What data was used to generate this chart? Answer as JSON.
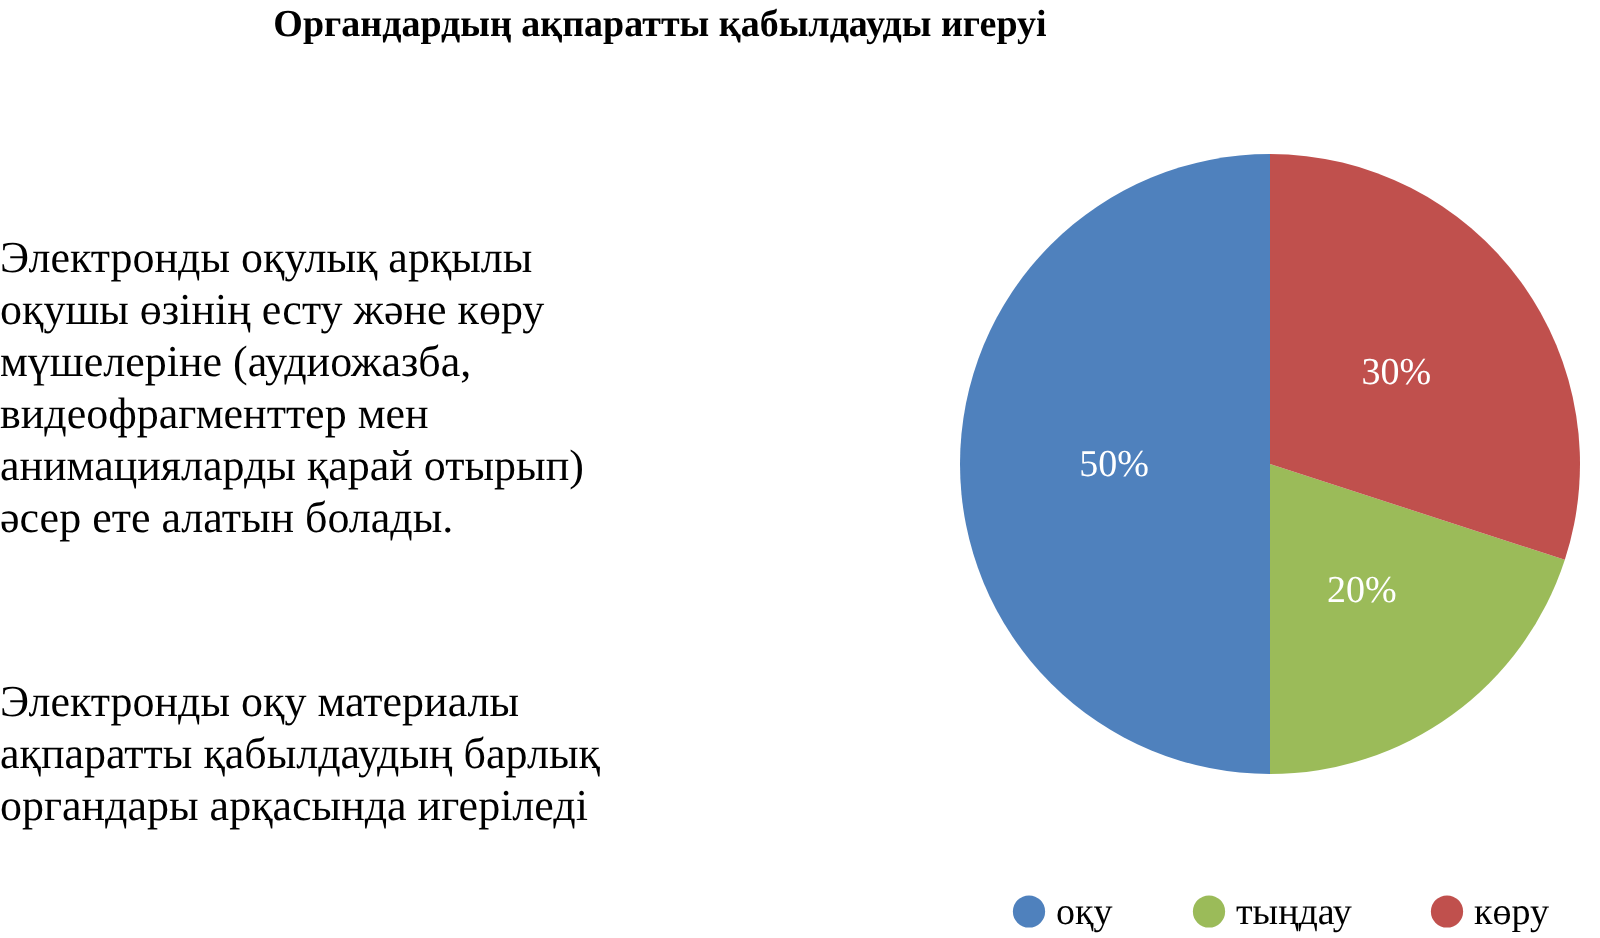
{
  "chart_data": {
    "type": "pie",
    "title": "Органдардың ақпаратты қабылдауды игеруі",
    "categories": [
      "оқу",
      "тыңдау",
      "көру"
    ],
    "values": [
      50,
      20,
      30
    ],
    "colors": [
      "#4f81bd",
      "#9bbb59",
      "#c0504d"
    ],
    "value_labels": [
      "50%",
      "20%",
      "30%"
    ],
    "legend": "bottom",
    "annotations": [
      " Электронды оқулық арқылы\nоқушы өзінің есту және көру\nмүшелеріне (аудиожазба,\nвидеофрагменттер мен\nанимацияларды қарай отырып)\nәсер ете алатын болады.",
      " Электронды оқу материалы\nақпаратты қабылдаудың барлық\nоргандары арқасында игеріледі"
    ]
  }
}
